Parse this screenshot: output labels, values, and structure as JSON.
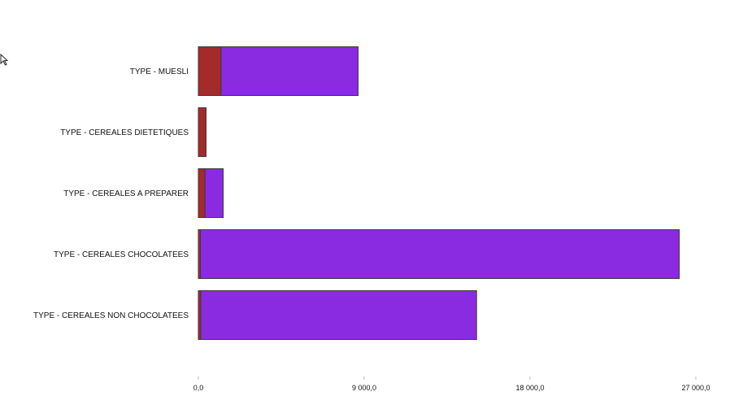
{
  "chart_data": {
    "type": "bar",
    "orientation": "horizontal",
    "stacked": true,
    "categories": [
      "TYPE - MUESLI",
      "TYPE - CEREALES DIETETIQUES",
      "TYPE - CEREALES A PREPARER",
      "TYPE - CEREALES CHOCOLATEES",
      "TYPE - CEREALES NON CHOCOLATEES"
    ],
    "series": [
      {
        "color": "#a52a2a",
        "values": [
          1230,
          420,
          360,
          110,
          130
        ]
      },
      {
        "color": "#8a2be2",
        "values": [
          7440,
          0,
          990,
          25990,
          14970
        ]
      }
    ],
    "xlim": [
      0,
      27000
    ],
    "xticks": [
      0,
      9000,
      18000,
      27000
    ],
    "xtick_labels": [
      "0,0",
      "9 000,0",
      "18 000,0",
      "27 000,0"
    ],
    "grid": false,
    "legend": "none"
  }
}
